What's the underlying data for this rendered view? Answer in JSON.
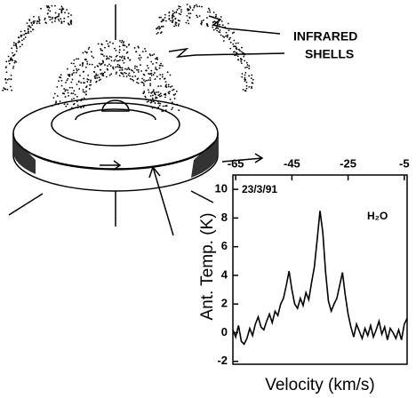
{
  "chart_data": {
    "type": "line",
    "annotations": [
      "INFRARED",
      "SHELLS",
      "23/3/91",
      "H₂O"
    ],
    "x_label": "Velocity (km/s)",
    "y_label": "Ant. Temp. (K)",
    "xlim": [
      -66,
      -4
    ],
    "ylim": [
      -2.2,
      11
    ],
    "xticks": [
      -65,
      -45,
      -25,
      -5
    ],
    "yticks": [
      -2,
      0,
      2,
      4,
      6,
      8,
      10
    ],
    "color": "#000000",
    "x": [
      -66,
      -65,
      -64,
      -63,
      -62,
      -61,
      -60,
      -59,
      -58,
      -57,
      -56,
      -55,
      -54,
      -53,
      -52,
      -51,
      -50,
      -49,
      -48,
      -47,
      -46,
      -45,
      -44,
      -43,
      -42,
      -41,
      -40,
      -39,
      -38,
      -37,
      -36,
      -35,
      -34,
      -33,
      -32,
      -31,
      -30,
      -29,
      -28,
      -27,
      -26,
      -25,
      -24,
      -23,
      -22,
      -21,
      -20,
      -19,
      -18,
      -17,
      -16,
      -15,
      -14,
      -13,
      -12,
      -11,
      -10,
      -9,
      -8,
      -7,
      -6,
      -5,
      -4
    ],
    "values": [
      0.2,
      -0.3,
      0.5,
      -0.6,
      -0.8,
      -0.4,
      0.3,
      -0.2,
      0.6,
      1.1,
      0.4,
      0.2,
      0.8,
      1.3,
      0.7,
      1.5,
      1.2,
      2.0,
      2.4,
      3.3,
      4.3,
      3.0,
      2.0,
      1.7,
      2.4,
      1.9,
      2.8,
      2.3,
      3.5,
      4.6,
      6.5,
      8.5,
      7.0,
      4.2,
      2.2,
      1.5,
      2.0,
      2.4,
      3.3,
      4.2,
      2.6,
      1.3,
      0.4,
      -0.3,
      0.6,
      0.1,
      -0.4,
      0.3,
      -0.2,
      0.5,
      -0.3,
      0.2,
      0.8,
      -0.1,
      0.4,
      -0.5,
      0.3,
      0.0,
      -0.4,
      0.2,
      -0.5,
      0.6,
      1.0
    ]
  }
}
